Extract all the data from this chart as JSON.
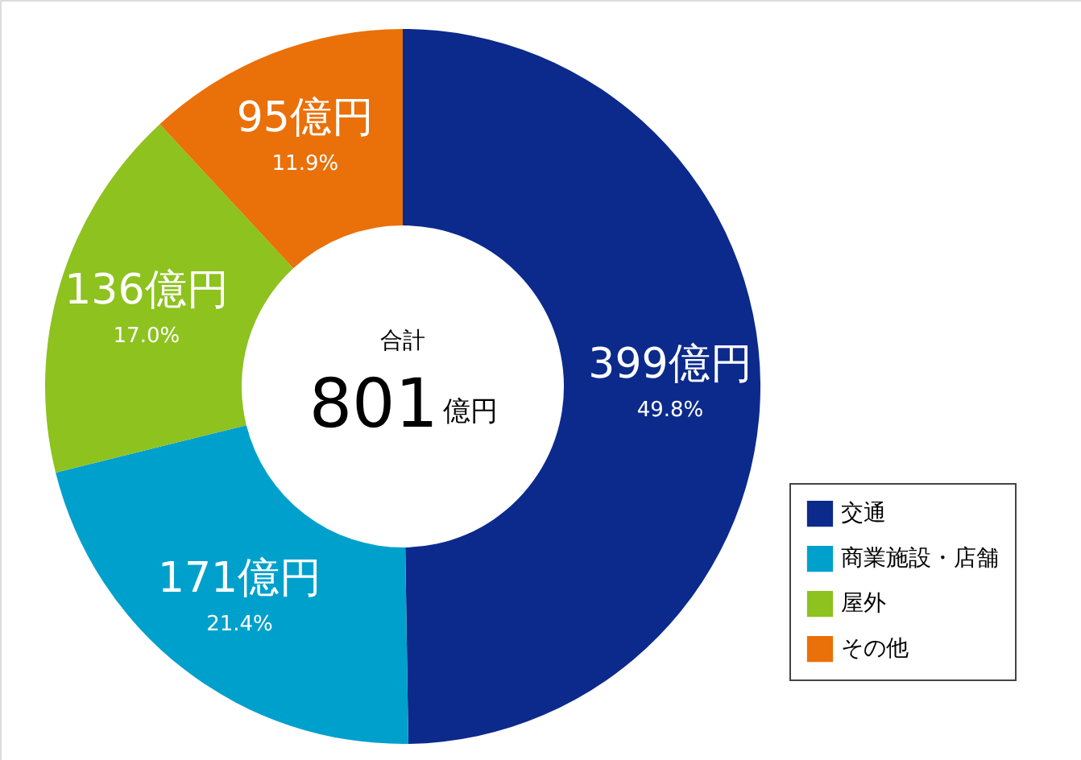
{
  "chart_data": {
    "type": "donut",
    "categories": [
      "交通",
      "商業施設・店舗",
      "屋外",
      "その他"
    ],
    "values": [
      49.8,
      21.4,
      17.0,
      11.9
    ],
    "colors": [
      "#0c2a8c",
      "#00a0cc",
      "#8dc21f",
      "#ea7009"
    ],
    "value_labels": [
      "399億円\n49.8%",
      "171億円\n21.4%",
      "136億円\n17.0%",
      "95億円\n11.9%"
    ],
    "annotations": [
      "合計",
      "801億円"
    ],
    "legend": "bottom right"
  }
}
